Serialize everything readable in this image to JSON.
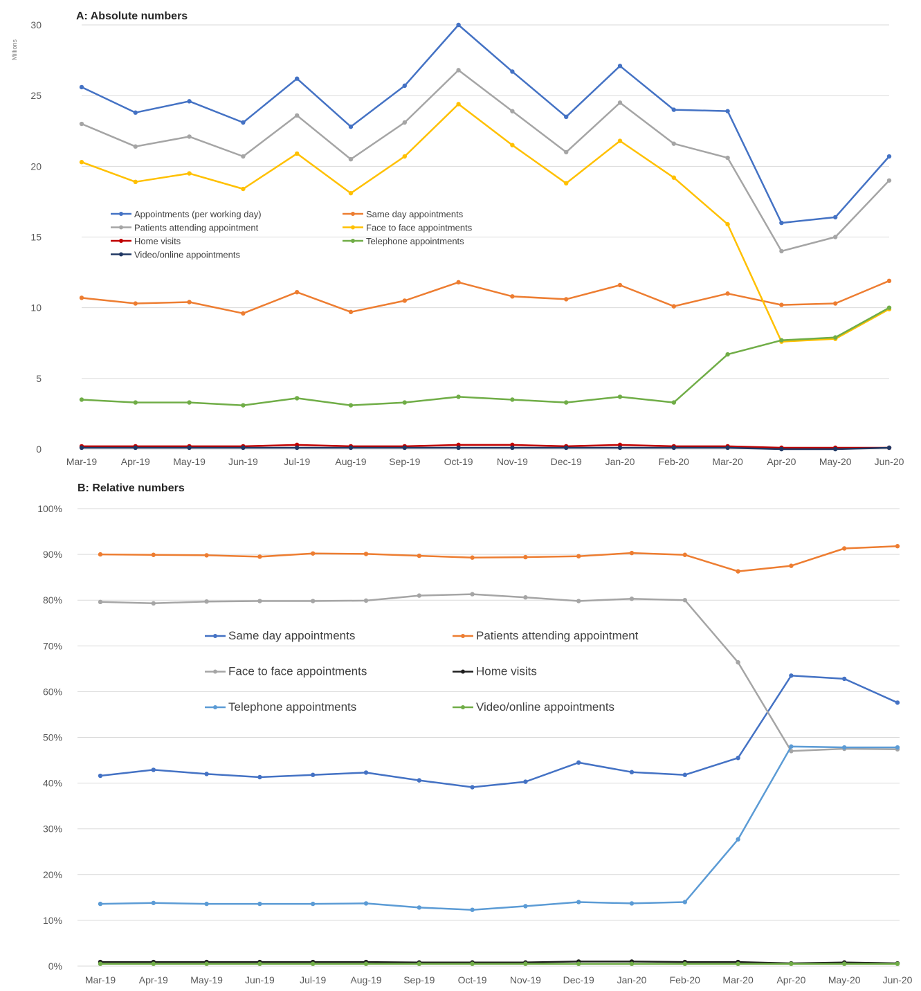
{
  "chart_data": [
    {
      "panel": "A",
      "type": "line",
      "title": "A: Absolute numbers",
      "ylabel": "Millions",
      "xlabel": "",
      "ylim": [
        0,
        30
      ],
      "yticks": [
        "0",
        "5",
        "10",
        "15",
        "20",
        "25",
        "30"
      ],
      "ytick_values": [
        0,
        5,
        10,
        15,
        20,
        25,
        30
      ],
      "grid": true,
      "legend_position": "center-left",
      "categories": [
        "Mar-19",
        "Apr-19",
        "May-19",
        "Jun-19",
        "Jul-19",
        "Aug-19",
        "Sep-19",
        "Oct-19",
        "Nov-19",
        "Dec-19",
        "Jan-20",
        "Feb-20",
        "Mar-20",
        "Apr-20",
        "May-20",
        "Jun-20"
      ],
      "series": [
        {
          "name": "Appointments (per working day)",
          "color": "#4472c4",
          "values": [
            25.6,
            23.8,
            24.6,
            23.1,
            26.2,
            22.8,
            25.7,
            30.0,
            26.7,
            23.5,
            27.1,
            24.0,
            23.9,
            16.0,
            16.4,
            20.7
          ]
        },
        {
          "name": "Same day appointments",
          "color": "#ed7d31",
          "values": [
            10.7,
            10.3,
            10.4,
            9.6,
            11.1,
            9.7,
            10.5,
            11.8,
            10.8,
            10.6,
            11.6,
            10.1,
            11.0,
            10.2,
            10.3,
            11.9
          ]
        },
        {
          "name": "Patients attending appointment",
          "color": "#a5a5a5",
          "values": [
            23.0,
            21.4,
            22.1,
            20.7,
            23.6,
            20.5,
            23.1,
            26.8,
            23.9,
            21.0,
            24.5,
            21.6,
            20.6,
            14.0,
            15.0,
            19.0
          ]
        },
        {
          "name": "Face to face appointments",
          "color": "#ffc000",
          "values": [
            20.3,
            18.9,
            19.5,
            18.4,
            20.9,
            18.1,
            20.7,
            24.4,
            21.5,
            18.8,
            21.8,
            19.2,
            15.9,
            7.6,
            7.8,
            9.9
          ]
        },
        {
          "name": "Home visits",
          "color": "#c00000",
          "values": [
            0.2,
            0.2,
            0.2,
            0.2,
            0.3,
            0.2,
            0.2,
            0.3,
            0.3,
            0.2,
            0.3,
            0.2,
            0.2,
            0.1,
            0.1,
            0.1
          ]
        },
        {
          "name": "Telephone appointments",
          "color": "#70ad47",
          "values": [
            3.5,
            3.3,
            3.3,
            3.1,
            3.6,
            3.1,
            3.3,
            3.7,
            3.5,
            3.3,
            3.7,
            3.3,
            6.7,
            7.7,
            7.9,
            10.0
          ]
        },
        {
          "name": "Video/online appointments",
          "color": "#203864",
          "values": [
            0.1,
            0.1,
            0.1,
            0.1,
            0.1,
            0.1,
            0.1,
            0.1,
            0.1,
            0.1,
            0.1,
            0.1,
            0.1,
            0.0,
            0.0,
            0.1
          ]
        }
      ]
    },
    {
      "panel": "B",
      "type": "line",
      "title": "B: Relative numbers",
      "xlabel": "",
      "ylabel": "",
      "ylim": [
        0,
        100
      ],
      "yticks": [
        "0%",
        "10%",
        "20%",
        "30%",
        "40%",
        "50%",
        "60%",
        "70%",
        "80%",
        "90%",
        "100%"
      ],
      "ytick_values": [
        0,
        10,
        20,
        30,
        40,
        50,
        60,
        70,
        80,
        90,
        100
      ],
      "grid": true,
      "legend_position": "center",
      "categories": [
        "Mar-19",
        "Apr-19",
        "May-19",
        "Jun-19",
        "Jul-19",
        "Aug-19",
        "Sep-19",
        "Oct-19",
        "Nov-19",
        "Dec-19",
        "Jan-20",
        "Feb-20",
        "Mar-20",
        "Apr-20",
        "May-20",
        "Jun-20"
      ],
      "series": [
        {
          "name": "Same day appointments",
          "color": "#4472c4",
          "values": [
            41.6,
            42.9,
            42.0,
            41.3,
            41.8,
            42.3,
            40.6,
            39.1,
            40.3,
            44.5,
            42.4,
            41.8,
            45.5,
            63.5,
            62.8,
            57.6
          ]
        },
        {
          "name": "Patients attending appointment",
          "color": "#ed7d31",
          "values": [
            90.0,
            89.9,
            89.8,
            89.5,
            90.2,
            90.1,
            89.7,
            89.3,
            89.4,
            89.6,
            90.3,
            89.9,
            86.3,
            87.5,
            91.3,
            91.8
          ]
        },
        {
          "name": "Face to face appointments",
          "color": "#a5a5a5",
          "values": [
            79.6,
            79.3,
            79.7,
            79.8,
            79.8,
            79.9,
            81.0,
            81.3,
            80.6,
            79.8,
            80.3,
            80.0,
            66.4,
            47.0,
            47.5,
            47.4
          ]
        },
        {
          "name": "Home visits",
          "color": "#1f1f1f",
          "values": [
            0.9,
            0.9,
            0.9,
            0.9,
            0.9,
            0.9,
            0.8,
            0.8,
            0.8,
            1.0,
            1.0,
            0.9,
            0.9,
            0.6,
            0.8,
            0.6
          ]
        },
        {
          "name": "Telephone appointments",
          "color": "#5b9bd5",
          "values": [
            13.6,
            13.8,
            13.6,
            13.6,
            13.6,
            13.7,
            12.8,
            12.3,
            13.1,
            14.0,
            13.7,
            14.0,
            27.7,
            48.0,
            47.8,
            47.8
          ]
        },
        {
          "name": "Video/online appointments",
          "color": "#70ad47",
          "values": [
            0.5,
            0.5,
            0.5,
            0.5,
            0.5,
            0.5,
            0.5,
            0.5,
            0.5,
            0.5,
            0.5,
            0.5,
            0.5,
            0.5,
            0.5,
            0.5
          ]
        }
      ]
    }
  ]
}
